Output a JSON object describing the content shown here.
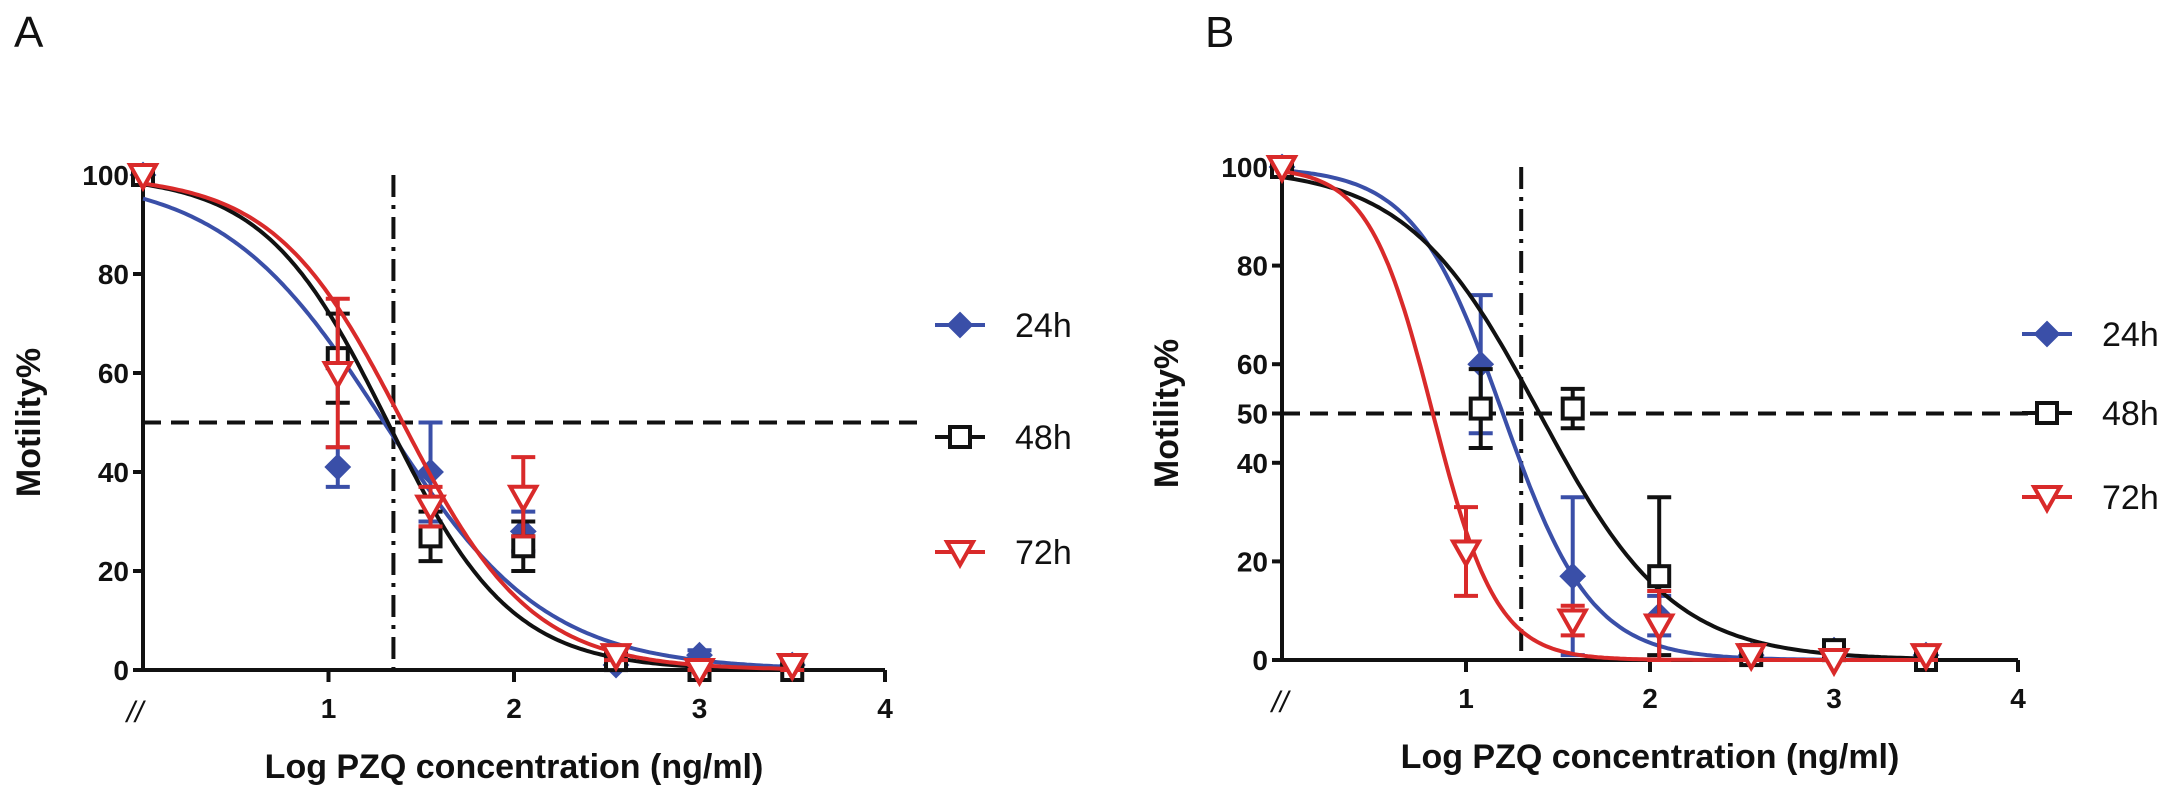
{
  "chart_data": [
    {
      "panel": "A",
      "type": "line",
      "xlabel": "Log PZQ concentration (ng/ml)",
      "ylabel": "Motility%",
      "xlim": [
        0,
        4
      ],
      "ylim": [
        0,
        100
      ],
      "x_ticks": [
        1,
        2,
        3,
        4
      ],
      "y_ticks": [
        0,
        20,
        40,
        60,
        80,
        100
      ],
      "axis_break_mark": "//",
      "reference_lines": {
        "horizontal_y": 50,
        "vertical_x": 1.35
      },
      "legend": "right",
      "series": [
        {
          "name": "24h",
          "color": "#3a4fa8",
          "marker": "diamond",
          "x": [
            0,
            1.05,
            1.55,
            2.05,
            2.55,
            3.0,
            3.5
          ],
          "y": [
            100,
            41,
            40,
            28,
            1,
            3,
            1
          ],
          "err": [
            0,
            4,
            10,
            4,
            1,
            1,
            1
          ],
          "curve": {
            "top": 100,
            "bottom": 0,
            "logIC50": 1.3,
            "hill": 1.0
          }
        },
        {
          "name": "48h",
          "color": "#111111",
          "marker": "open-square",
          "x": [
            0,
            1.05,
            1.55,
            2.05,
            2.55,
            3.0,
            3.5
          ],
          "y": [
            100,
            63,
            27,
            25,
            2,
            0,
            0
          ],
          "err": [
            0,
            9,
            5,
            5,
            1,
            1,
            1
          ],
          "curve": {
            "top": 100,
            "bottom": 0,
            "logIC50": 1.32,
            "hill": 1.3
          }
        },
        {
          "name": "72h",
          "color": "#d92a2a",
          "marker": "open-triangle-down",
          "x": [
            0,
            1.05,
            1.55,
            2.05,
            2.55,
            3.0,
            3.5
          ],
          "y": [
            100,
            60,
            33,
            35,
            3,
            0,
            1
          ],
          "err": [
            0,
            15,
            4,
            8,
            1,
            1,
            1
          ],
          "curve": {
            "top": 100,
            "bottom": 0,
            "logIC50": 1.4,
            "hill": 1.25
          }
        }
      ]
    },
    {
      "panel": "B",
      "type": "line",
      "xlabel": "Log PZQ concentration (ng/ml)",
      "ylabel": "Motility%",
      "xlim": [
        0,
        4
      ],
      "ylim": [
        0,
        100
      ],
      "x_ticks": [
        1,
        2,
        3,
        4
      ],
      "y_ticks": [
        0,
        20,
        40,
        50,
        60,
        80,
        100
      ],
      "axis_break_mark": "//",
      "reference_lines": {
        "horizontal_y": 50,
        "vertical_x": 1.3
      },
      "legend": "right",
      "series": [
        {
          "name": "24h",
          "color": "#3a4fa8",
          "marker": "diamond",
          "x": [
            0,
            1.08,
            1.58,
            2.05,
            2.55,
            3.0,
            3.5
          ],
          "y": [
            100,
            60,
            17,
            9,
            1,
            2,
            1
          ],
          "err": [
            0,
            14,
            16,
            4,
            1,
            1,
            1
          ],
          "curve": {
            "top": 100,
            "bottom": 0,
            "logIC50": 1.2,
            "hill": 1.8
          }
        },
        {
          "name": "48h",
          "color": "#111111",
          "marker": "open-square",
          "x": [
            0,
            1.08,
            1.58,
            2.05,
            2.55,
            3.0,
            3.5
          ],
          "y": [
            100,
            51,
            51,
            17,
            1,
            2,
            0
          ],
          "err": [
            0,
            8,
            4,
            16,
            1,
            1,
            1
          ],
          "curve": {
            "top": 100,
            "bottom": 0,
            "logIC50": 1.4,
            "hill": 1.2
          }
        },
        {
          "name": "72h",
          "color": "#d92a2a",
          "marker": "open-triangle-down",
          "x": [
            0,
            1.0,
            1.58,
            2.05,
            2.55,
            3.0,
            3.5
          ],
          "y": [
            100,
            22,
            8,
            7,
            1,
            0,
            1
          ],
          "err": [
            0,
            9,
            3,
            7,
            1,
            1,
            1
          ],
          "curve": {
            "top": 100,
            "bottom": 0,
            "logIC50": 0.82,
            "hill": 2.5
          }
        }
      ]
    }
  ],
  "panels": [
    {
      "label": "A"
    },
    {
      "label": "B"
    }
  ]
}
